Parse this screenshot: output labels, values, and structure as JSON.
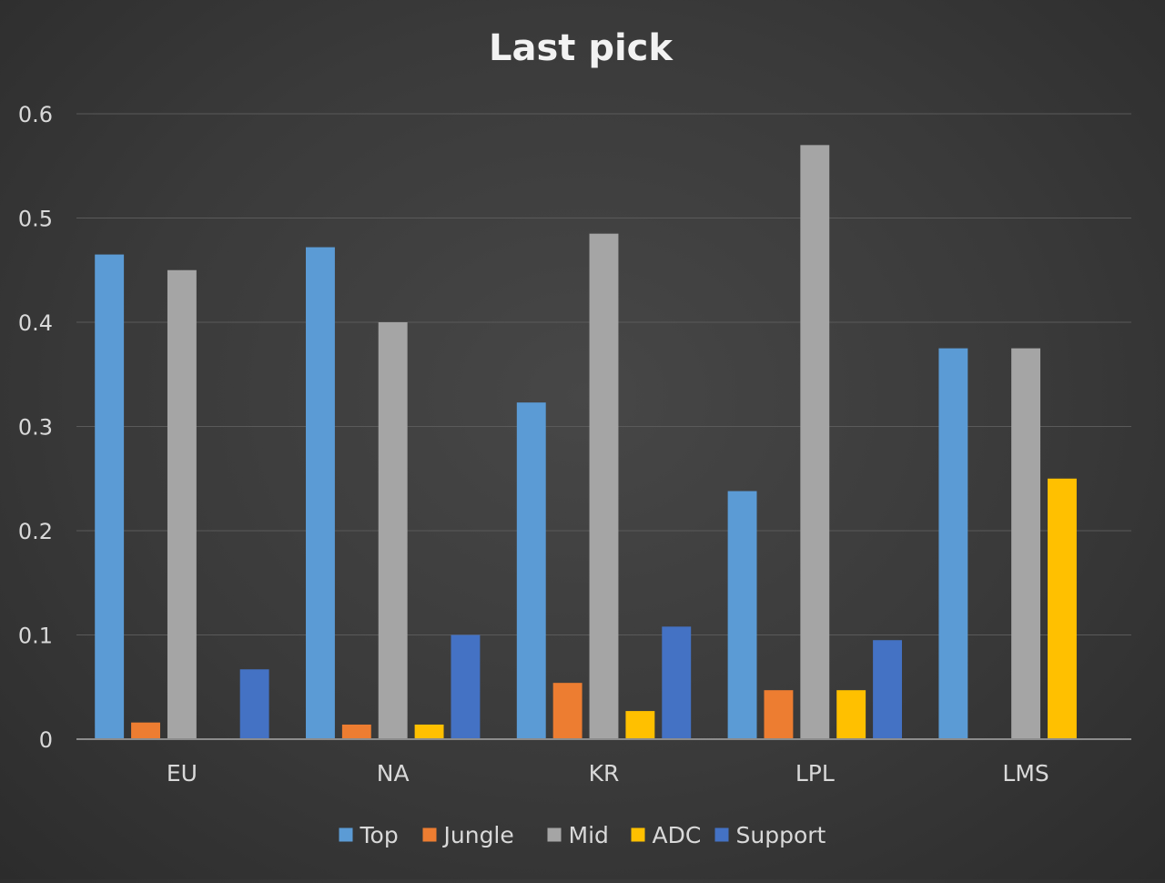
{
  "chart_data": {
    "type": "bar",
    "title": "Last pick",
    "xlabel": "",
    "ylabel": "",
    "categories": [
      "EU",
      "NA",
      "KR",
      "LPL",
      "LMS"
    ],
    "ylim": [
      0,
      0.6
    ],
    "yticks": [
      0,
      0.1,
      0.2,
      0.3,
      0.4,
      0.5,
      0.6
    ],
    "ytick_labels": [
      "0",
      "0.1",
      "0.2",
      "0.3",
      "0.4",
      "0.5",
      "0.6"
    ],
    "grid": true,
    "legend_position": "bottom",
    "series": [
      {
        "name": "Top",
        "color": "#5b9bd5",
        "values": [
          0.465,
          0.472,
          0.323,
          0.238,
          0.375
        ]
      },
      {
        "name": "Jungle",
        "color": "#ed7d31",
        "values": [
          0.016,
          0.014,
          0.054,
          0.047,
          0
        ]
      },
      {
        "name": "Mid",
        "color": "#a5a5a5",
        "values": [
          0.45,
          0.4,
          0.485,
          0.57,
          0.375
        ]
      },
      {
        "name": "ADC",
        "color": "#ffc000",
        "values": [
          0,
          0.014,
          0.027,
          0.047,
          0.25
        ]
      },
      {
        "name": "Support",
        "color": "#4472c4",
        "values": [
          0.067,
          0.1,
          0.108,
          0.095,
          0
        ]
      }
    ]
  }
}
